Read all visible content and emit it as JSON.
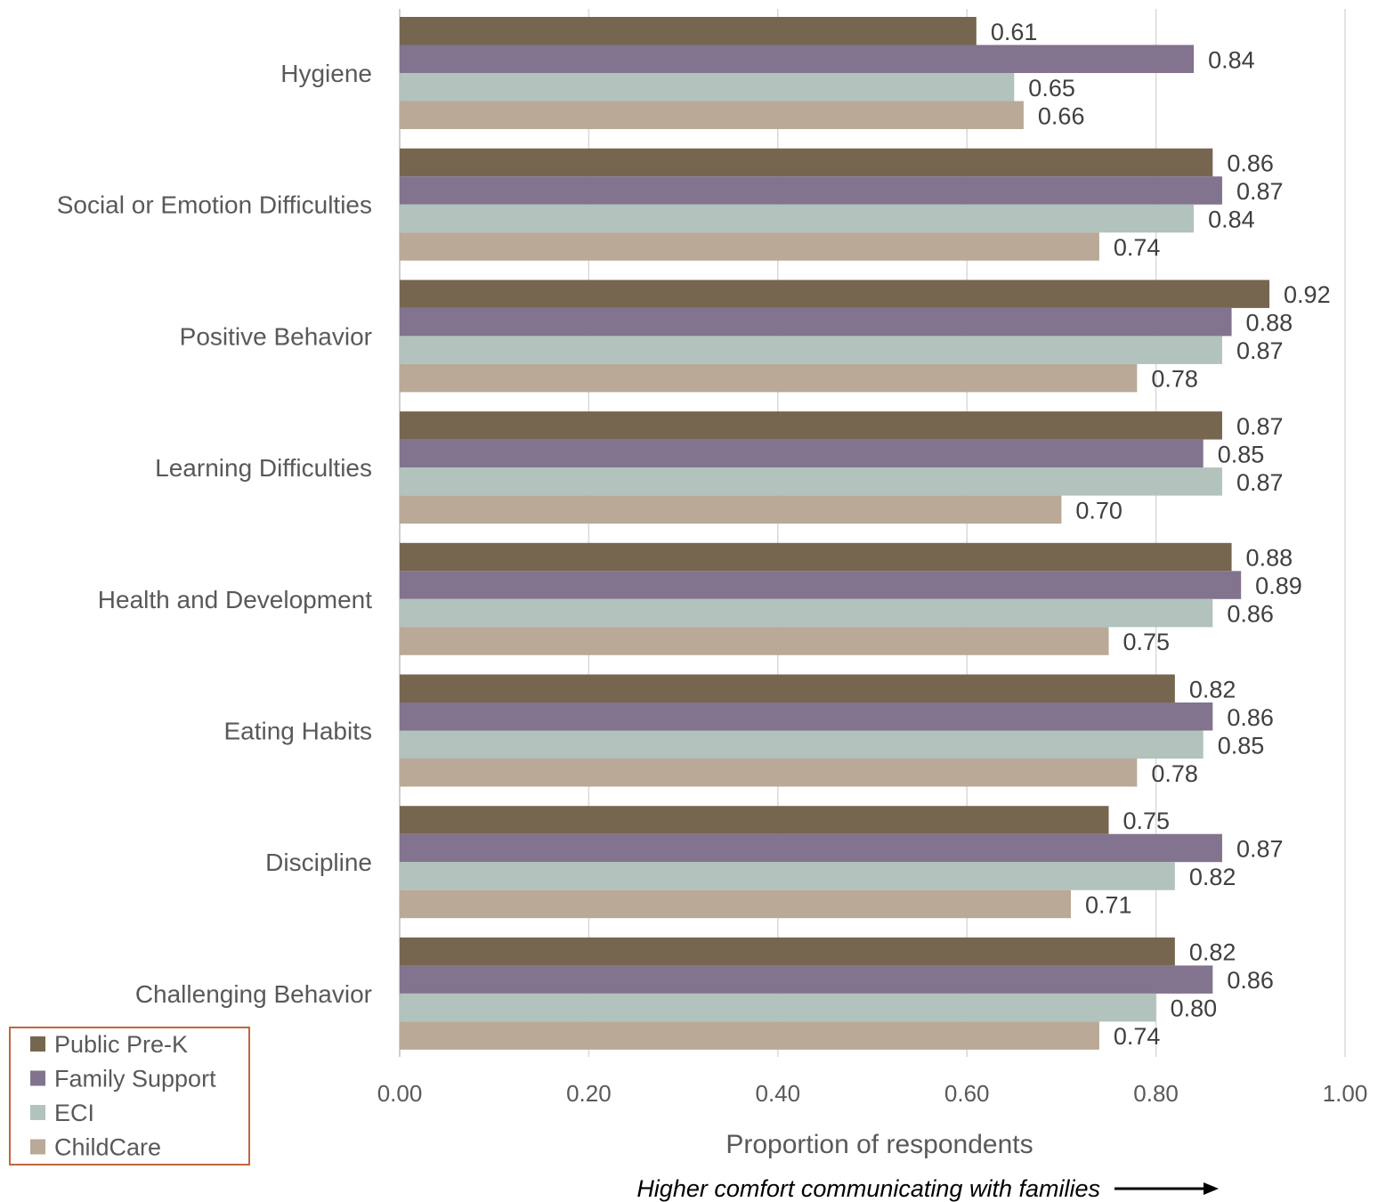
{
  "chart_data": {
    "type": "bar",
    "orientation": "horizontal",
    "categories": [
      "Hygiene",
      "Social or Emotion Difficulties",
      "Positive Behavior",
      "Learning Difficulties",
      "Health and Development",
      "Eating Habits",
      "Discipline",
      "Challenging Behavior"
    ],
    "series": [
      {
        "name": "Public Pre-K",
        "color": "#77664f",
        "values": [
          0.61,
          0.86,
          0.92,
          0.87,
          0.88,
          0.82,
          0.75,
          0.82
        ]
      },
      {
        "name": "Family Support",
        "color": "#82738e",
        "values": [
          0.84,
          0.87,
          0.88,
          0.85,
          0.89,
          0.86,
          0.87,
          0.86
        ]
      },
      {
        "name": "ECI",
        "color": "#b2c2bc",
        "values": [
          0.65,
          0.84,
          0.87,
          0.87,
          0.86,
          0.85,
          0.82,
          0.8
        ]
      },
      {
        "name": "ChildCare",
        "color": "#baa997",
        "values": [
          0.66,
          0.74,
          0.78,
          0.7,
          0.75,
          0.78,
          0.71,
          0.74
        ]
      }
    ],
    "xlim": [
      0,
      1
    ],
    "ticks": [
      "0.00",
      "0.20",
      "0.40",
      "0.60",
      "0.80",
      "1.00"
    ],
    "xlabel": "Proportion of respondents",
    "note": "Higher comfort communicating with families",
    "grid": true,
    "legend_position": "bottom-left",
    "legend_border_color": "#c0673e"
  }
}
